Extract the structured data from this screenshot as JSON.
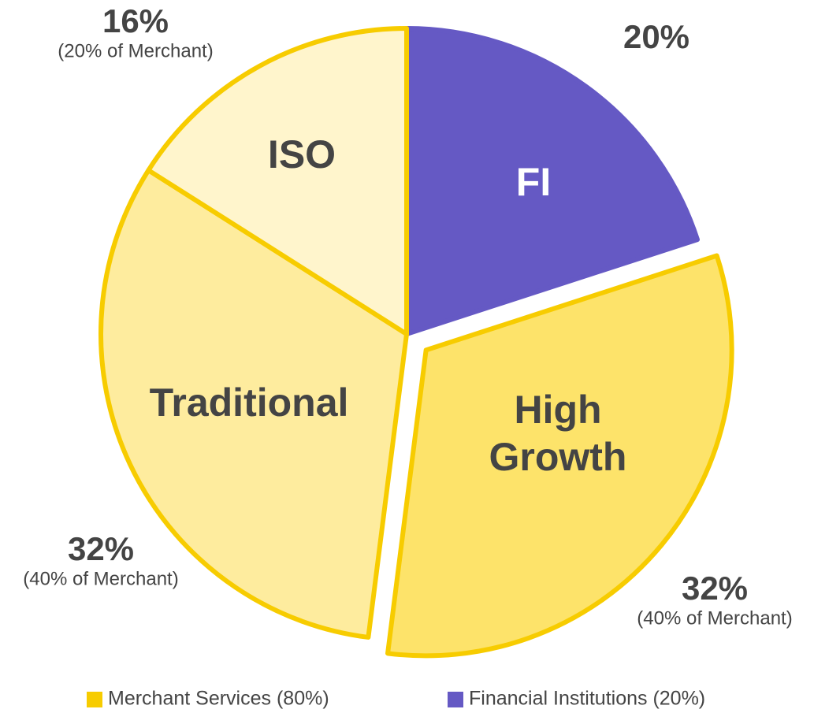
{
  "chart_data": {
    "type": "pie",
    "categories": [
      "FI",
      "High Growth",
      "Traditional",
      "ISO"
    ],
    "values": [
      20,
      32,
      32,
      16
    ],
    "value_labels": [
      "20%",
      "32%",
      "32%",
      "16%"
    ],
    "sublabels": [
      null,
      "(40% of Merchant)",
      "(40% of Merchant)",
      "(20% of Merchant)"
    ],
    "colors": [
      "#6559c4",
      "#fde36a",
      "#feec9e",
      "#fff5cc"
    ],
    "border_colors": [
      "#6559c4",
      "#f7cc00",
      "#f7cc00",
      "#f7cc00"
    ],
    "explode": "High Growth",
    "legend": [
      {
        "label": "Merchant Services (80%)",
        "color": "#f7cc00"
      },
      {
        "label": "Financial Institutions (20%)",
        "color": "#6559c4"
      }
    ]
  }
}
